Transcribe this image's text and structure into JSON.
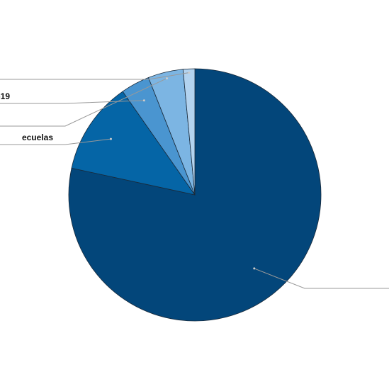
{
  "chart_data": {
    "type": "pie",
    "labels": [
      null,
      "ecuelas",
      "-19",
      null,
      null
    ],
    "values": [
      78.4,
      11.9,
      3.7,
      4.5,
      1.5
    ],
    "colors": [
      "#03467a",
      "#0565a6",
      "#4a95d0",
      "#7cb5e3",
      "#b3d3ef"
    ]
  }
}
